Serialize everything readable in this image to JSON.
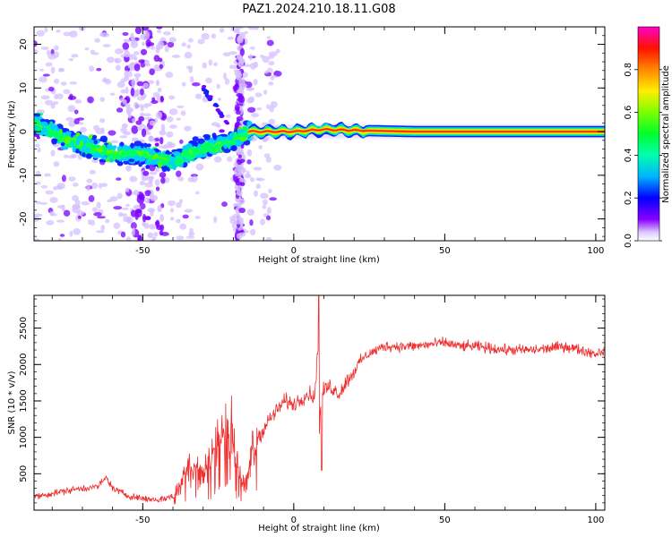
{
  "figure_title": "PAZ1.2024.210.18.11.G08",
  "colors": {
    "snr_line": "#ee2e2e",
    "track": "#ff0000",
    "axis": "#000000"
  },
  "chart_data": [
    {
      "type": "heatmap",
      "title": "",
      "xlabel": "Height of straight line (km)",
      "ylabel": "Frequency (Hz)",
      "xlim": [
        -86,
        103
      ],
      "ylim": [
        -25,
        24
      ],
      "xticks": [
        -50,
        0,
        50,
        100
      ],
      "yticks": [
        -20,
        -10,
        0,
        10,
        20
      ],
      "colorbar": {
        "label": "Normalized spectral amplitude",
        "range": [
          0,
          1
        ],
        "ticks": [
          0.0,
          0.2,
          0.4,
          0.6,
          0.8
        ],
        "colormap": "gist_rainbow",
        "low_color": "#ffffff",
        "high_color": "#ff00cc"
      },
      "dominant_track": [
        {
          "x": -86,
          "y": 2
        },
        {
          "x": -80,
          "y": 0
        },
        {
          "x": -75,
          "y": -2
        },
        {
          "x": -70,
          "y": -3
        },
        {
          "x": -65,
          "y": -4
        },
        {
          "x": -60,
          "y": -5
        },
        {
          "x": -55,
          "y": -5
        },
        {
          "x": -50,
          "y": -5
        },
        {
          "x": -45,
          "y": -6
        },
        {
          "x": -40,
          "y": -7
        },
        {
          "x": -35,
          "y": -5
        },
        {
          "x": -30,
          "y": -4
        },
        {
          "x": -25,
          "y": -3
        },
        {
          "x": -20,
          "y": -2
        },
        {
          "x": -15,
          "y": 0
        },
        {
          "x": -10,
          "y": 0
        },
        {
          "x": 0,
          "y": 0
        },
        {
          "x": 10,
          "y": 0.5
        },
        {
          "x": 20,
          "y": 0.3
        },
        {
          "x": 40,
          "y": 0
        },
        {
          "x": 103,
          "y": 0
        }
      ],
      "noise_bands_x": [
        [
          -56,
          -43
        ],
        [
          -19,
          -17
        ]
      ]
    },
    {
      "type": "line",
      "title": "",
      "xlabel": "Height of straight line (km)",
      "ylabel": "SNR (10 * v/v)",
      "xlim": [
        -86,
        103
      ],
      "ylim": [
        0,
        2950
      ],
      "xticks": [
        -50,
        0,
        50,
        100
      ],
      "yticks": [
        500,
        1000,
        1500,
        2000,
        2500
      ],
      "series": [
        {
          "x": [
            -86,
            -80,
            -75,
            -70,
            -65,
            -62,
            -60,
            -55,
            -50,
            -45,
            -40,
            -37,
            -35,
            -30,
            -27,
            -25,
            -22,
            -20,
            -18,
            -16,
            -14,
            -12,
            -10,
            -8,
            -5,
            -3,
            0,
            3,
            5,
            7,
            8,
            8.5,
            9,
            10,
            12,
            15,
            18,
            20,
            22,
            25,
            30,
            40,
            50,
            55,
            60,
            70,
            80,
            90,
            100,
            103
          ],
          "values": [
            180,
            230,
            270,
            300,
            320,
            450,
            300,
            200,
            160,
            140,
            190,
            400,
            700,
            500,
            800,
            1000,
            1150,
            1100,
            500,
            300,
            800,
            1000,
            1100,
            1250,
            1400,
            1500,
            1450,
            1550,
            1600,
            1550,
            2300,
            1100,
            1500,
            1650,
            1700,
            1600,
            1800,
            1900,
            2050,
            2150,
            2250,
            2250,
            2300,
            2250,
            2250,
            2200,
            2200,
            2250,
            2150,
            2200
          ]
        }
      ]
    }
  ]
}
